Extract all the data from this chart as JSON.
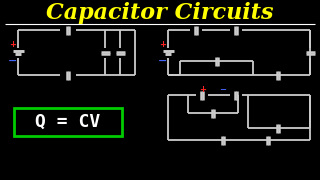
{
  "bg_color": "#000000",
  "title": "Capacitor Circuits",
  "title_color": "#FFFF00",
  "title_fontsize": 16,
  "separator_color": "#FFFFFF",
  "wire_color": "#CCCCCC",
  "cap_color": "#CCCCCC",
  "plus_color": "#FF2222",
  "minus_color": "#4466FF",
  "formula_text": "Q = CV",
  "formula_color": "#FFFFFF",
  "formula_box_color": "#00CC00",
  "formula_fontsize": 10
}
